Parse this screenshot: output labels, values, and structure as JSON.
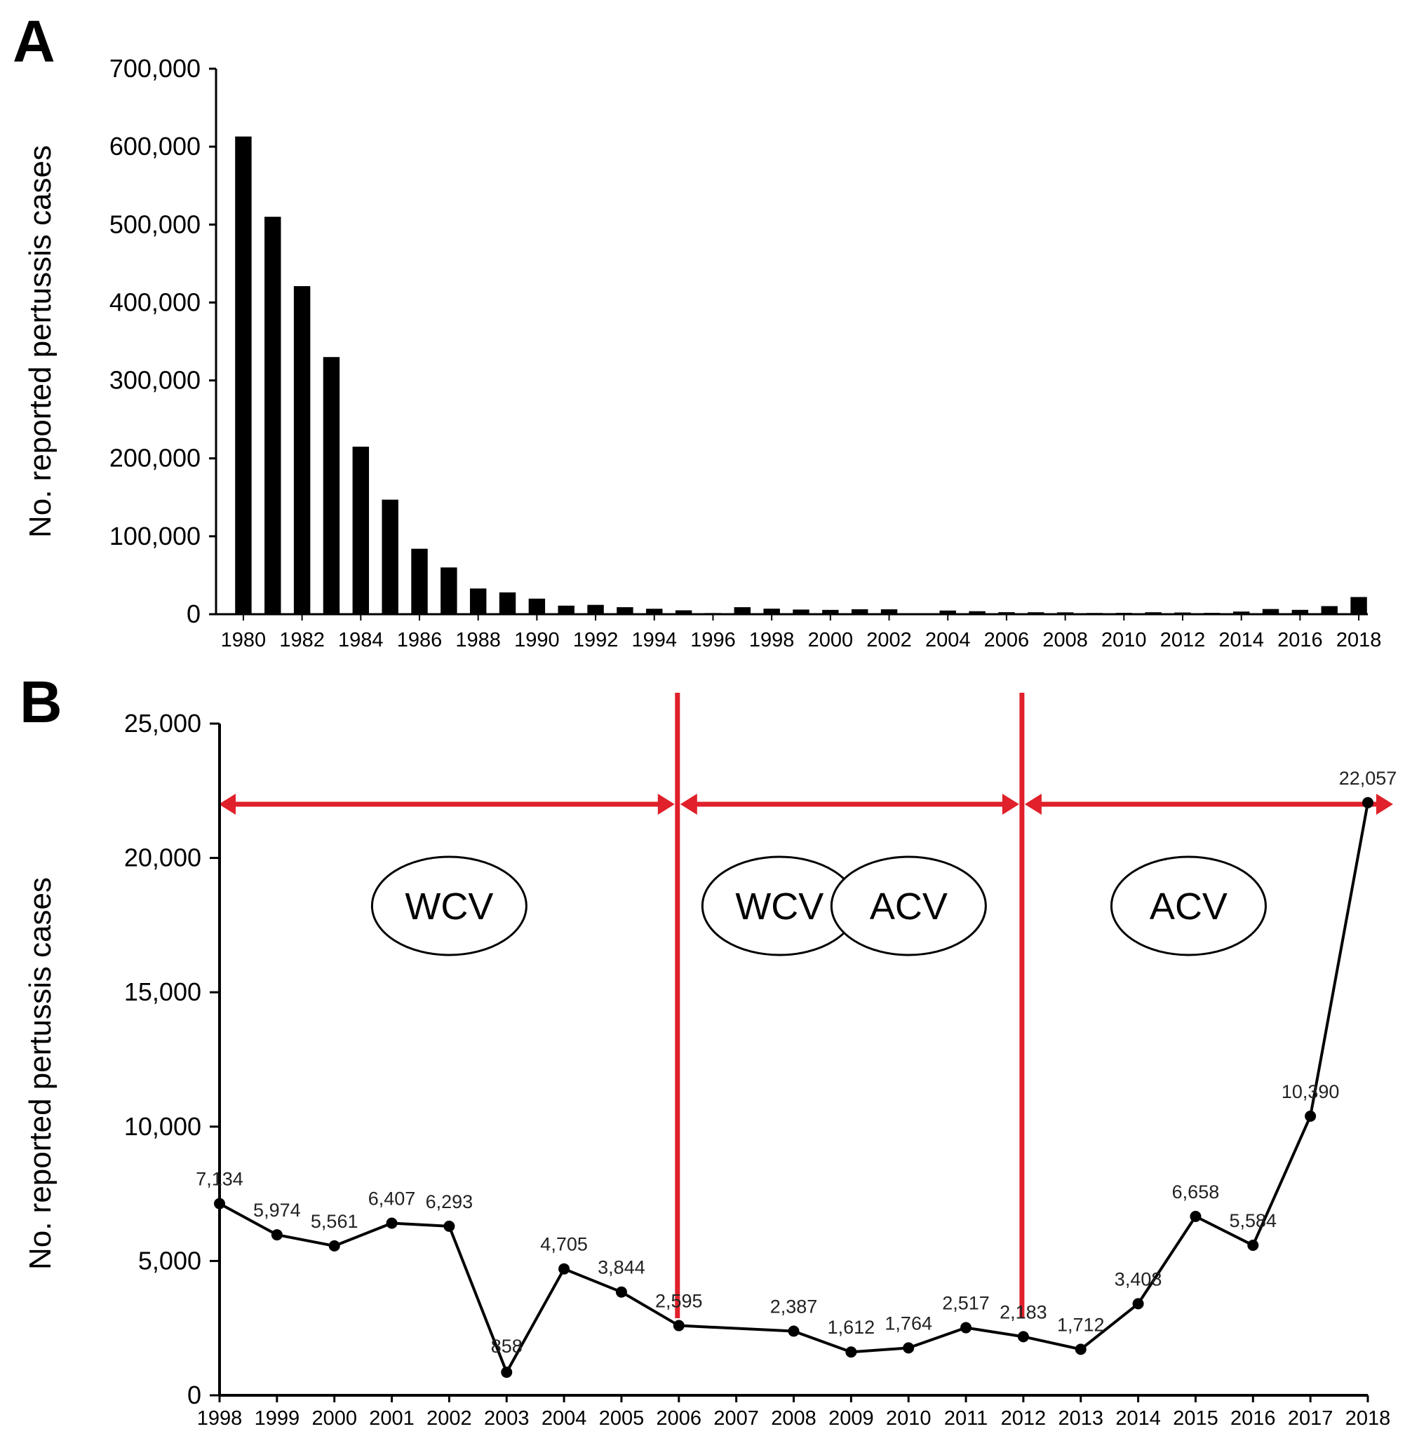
{
  "figure": {
    "panels": [
      "A",
      "B"
    ],
    "colors": {
      "bars": "#000000",
      "line": "#000000",
      "era_marker": "#e0202a",
      "background": "#ffffff"
    }
  },
  "chart_data": [
    {
      "panel": "A",
      "type": "bar",
      "ylabel": "No. reported pertussis cases",
      "xlabel": "",
      "ylim": [
        0,
        700000
      ],
      "yticks": [
        "0",
        "100,000",
        "200,000",
        "300,000",
        "400,000",
        "500,000",
        "600,000",
        "700,000"
      ],
      "ytick_values": [
        0,
        100000,
        200000,
        300000,
        400000,
        500000,
        600000,
        700000
      ],
      "xtick_labels": [
        "1980",
        "1982",
        "1984",
        "1986",
        "1988",
        "1990",
        "1992",
        "1994",
        "1996",
        "1998",
        "2000",
        "2002",
        "2004",
        "2006",
        "2008",
        "2010",
        "2012",
        "2014",
        "2016",
        "2018"
      ],
      "categories": [
        1980,
        1981,
        1982,
        1983,
        1984,
        1985,
        1986,
        1987,
        1988,
        1989,
        1990,
        1991,
        1992,
        1993,
        1994,
        1995,
        1996,
        1997,
        1998,
        1999,
        2000,
        2001,
        2002,
        2003,
        2004,
        2005,
        2006,
        2007,
        2008,
        2009,
        2010,
        2011,
        2012,
        2013,
        2014,
        2015,
        2016,
        2017,
        2018
      ],
      "values": [
        613000,
        510000,
        421000,
        330000,
        215000,
        147000,
        84000,
        60000,
        33000,
        28000,
        20000,
        11000,
        12000,
        9000,
        7000,
        5000,
        1500,
        9000,
        7134,
        5974,
        5561,
        6407,
        6293,
        858,
        4705,
        3844,
        2595,
        2500,
        2387,
        1612,
        1764,
        2517,
        2183,
        1712,
        3408,
        6658,
        5584,
        10390,
        22057
      ],
      "grid": false
    },
    {
      "panel": "B",
      "type": "line",
      "ylabel": "No. reported pertussis cases",
      "xlabel": "",
      "ylim": [
        0,
        25000
      ],
      "yticks": [
        "0",
        "5,000",
        "10,000",
        "15,000",
        "20,000",
        "25,000"
      ],
      "ytick_values": [
        0,
        5000,
        10000,
        15000,
        20000,
        25000
      ],
      "x": [
        1998,
        1999,
        2000,
        2001,
        2002,
        2003,
        2004,
        2005,
        2006,
        2007,
        2008,
        2009,
        2010,
        2011,
        2012,
        2013,
        2014,
        2015,
        2016,
        2017,
        2018
      ],
      "xtick_labels": [
        "1998",
        "1999",
        "2000",
        "2001",
        "2002",
        "2003",
        "2004",
        "2005",
        "2006",
        "2007",
        "2008",
        "2009",
        "2010",
        "2011",
        "2012",
        "2013",
        "2014",
        "2015",
        "2016",
        "2017",
        "2018"
      ],
      "points": [
        {
          "year": 1998,
          "value": 7134,
          "label": "7,134"
        },
        {
          "year": 1999,
          "value": 5974,
          "label": "5,974"
        },
        {
          "year": 2000,
          "value": 5561,
          "label": "5,561"
        },
        {
          "year": 2001,
          "value": 6407,
          "label": "6,407"
        },
        {
          "year": 2002,
          "value": 6293,
          "label": "6,293"
        },
        {
          "year": 2003,
          "value": 858,
          "label": "858"
        },
        {
          "year": 2004,
          "value": 4705,
          "label": "4,705"
        },
        {
          "year": 2005,
          "value": 3844,
          "label": "3,844"
        },
        {
          "year": 2006,
          "value": 2595,
          "label": "2,595"
        },
        {
          "year": 2008,
          "value": 2387,
          "label": "2,387"
        },
        {
          "year": 2009,
          "value": 1612,
          "label": "1,612"
        },
        {
          "year": 2010,
          "value": 1764,
          "label": "1,764"
        },
        {
          "year": 2011,
          "value": 2517,
          "label": "2,517"
        },
        {
          "year": 2012,
          "value": 2183,
          "label": "2,183"
        },
        {
          "year": 2013,
          "value": 1712,
          "label": "1,712"
        },
        {
          "year": 2014,
          "value": 3408,
          "label": "3,408"
        },
        {
          "year": 2015,
          "value": 6658,
          "label": "6,658"
        },
        {
          "year": 2016,
          "value": 5584,
          "label": "5,584"
        },
        {
          "year": 2017,
          "value": 10390,
          "label": "10,390"
        },
        {
          "year": 2018,
          "value": 22057,
          "label": "22,057"
        }
      ],
      "era_boundaries": [
        2006,
        2012
      ],
      "eras": [
        {
          "from": 1998,
          "to": 2006,
          "labels": [
            "WCV"
          ]
        },
        {
          "from": 2006,
          "to": 2012,
          "labels": [
            "WCV",
            "ACV"
          ]
        },
        {
          "from": 2012,
          "to": 2018,
          "labels": [
            "ACV"
          ]
        }
      ],
      "grid": false
    }
  ]
}
